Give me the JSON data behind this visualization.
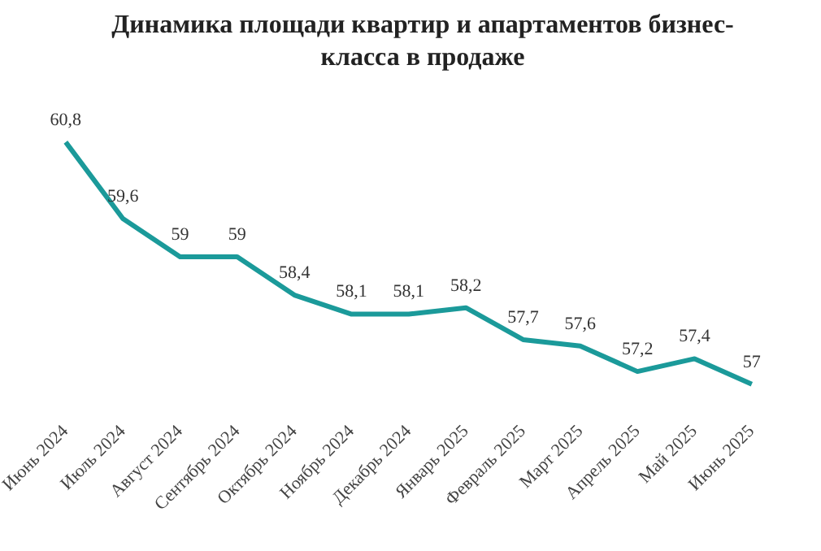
{
  "chart_data": {
    "type": "line",
    "title": "Динамика площади квартир и апартаментов бизнес-класса в продаже",
    "categories": [
      "Июнь 2024",
      "Июль 2024",
      "Август 2024",
      "Сентябрь 2024",
      "Октябрь 2024",
      "Ноябрь 2024",
      "Декабрь 2024",
      "Январь 2025",
      "Февраль 2025",
      "Март 2025",
      "Апрель 2025",
      "Май 2025",
      "Июнь 2025"
    ],
    "series": [
      {
        "color": "#1b9a9a",
        "values": [
          60.8,
          59.6,
          59,
          59,
          58.4,
          58.1,
          58.1,
          58.2,
          57.7,
          57.6,
          57.2,
          57.4,
          57
        ],
        "value_labels": [
          "60,8",
          "59,6",
          "59",
          "59",
          "58,4",
          "58,1",
          "58,1",
          "58,2",
          "57,7",
          "57,6",
          "57,2",
          "57,4",
          "57"
        ]
      }
    ],
    "grid": false,
    "legend": false,
    "marker": "none",
    "line_style": "solid"
  }
}
